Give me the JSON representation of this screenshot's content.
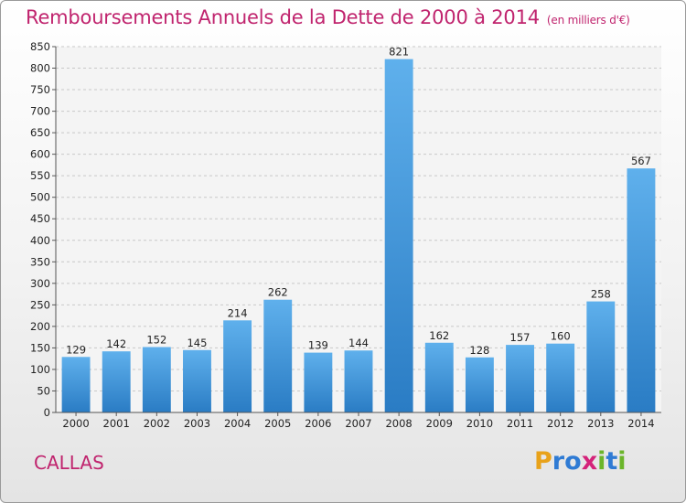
{
  "chart_data": {
    "type": "bar",
    "title": "Remboursements Annuels de la Dette de 2000 à 2014",
    "subtitle": "(en milliers d'€)",
    "categories": [
      "2000",
      "2001",
      "2002",
      "2003",
      "2004",
      "2005",
      "2006",
      "2007",
      "2008",
      "2009",
      "2010",
      "2011",
      "2012",
      "2013",
      "2014"
    ],
    "values": [
      129,
      142,
      152,
      145,
      214,
      262,
      139,
      144,
      821,
      162,
      128,
      157,
      160,
      258,
      567
    ],
    "ylim": [
      0,
      850
    ],
    "yticks": [
      0,
      50,
      100,
      150,
      200,
      250,
      300,
      350,
      400,
      450,
      500,
      550,
      600,
      650,
      700,
      750,
      800,
      850
    ],
    "grid": true,
    "bar_color": "#3a8fd8"
  },
  "footer": {
    "commune": "CALLAS",
    "logo_letters": [
      "P",
      "r",
      "o",
      "x",
      "i",
      "t",
      "i"
    ],
    "logo_colors": [
      "#e8a21a",
      "#2f7bd4",
      "#2f7bd4",
      "#d4237a",
      "#6bb52a",
      "#2f7bd4",
      "#6bb52a"
    ]
  }
}
